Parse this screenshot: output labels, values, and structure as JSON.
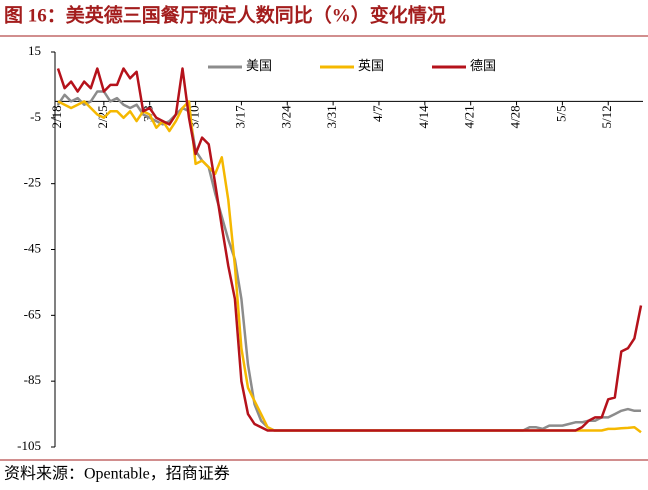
{
  "chart_data": {
    "type": "line",
    "title": "图 16：美英德三国餐厅预定人数同比（%）变化情况",
    "source": "资料来源：Opentable，招商证券",
    "categories": [
      "2/18",
      null,
      null,
      null,
      null,
      null,
      null,
      "2/25",
      null,
      null,
      null,
      null,
      null,
      null,
      "3/3",
      null,
      null,
      null,
      null,
      null,
      null,
      "3/10",
      null,
      null,
      null,
      null,
      null,
      null,
      "3/17",
      null,
      null,
      null,
      null,
      null,
      null,
      "3/24",
      null,
      null,
      null,
      null,
      null,
      null,
      "3/31",
      null,
      null,
      null,
      null,
      null,
      null,
      "4/7",
      null,
      null,
      null,
      null,
      null,
      null,
      "4/14",
      null,
      null,
      null,
      null,
      null,
      null,
      "4/21",
      null,
      null,
      null,
      null,
      null,
      null,
      "4/28",
      null,
      null,
      null,
      null,
      null,
      null,
      "5/5",
      null,
      null,
      null,
      null,
      null,
      null,
      "5/12",
      null,
      null,
      null,
      null,
      null
    ],
    "series": [
      {
        "name": "美国",
        "color": "#8c8c8c",
        "values": [
          -1,
          2,
          0,
          1,
          -1,
          0,
          3,
          3,
          0,
          1,
          -1,
          -2,
          -1,
          -4,
          -5,
          -6,
          -7,
          -6,
          -4,
          -2,
          -3,
          -15,
          -18,
          -20,
          -28,
          -35,
          -42,
          -48,
          -60,
          -80,
          -92,
          -97,
          -99,
          -100,
          -100,
          -100,
          -100,
          -100,
          -100,
          -100,
          -100,
          -100,
          -100,
          -100,
          -100,
          -100,
          -100,
          -100,
          -100,
          -100,
          -100,
          -100,
          -100,
          -100,
          -100,
          -100,
          -100,
          -100,
          -100,
          -100,
          -100,
          -100,
          -100,
          -100,
          -100,
          -100,
          -100,
          -100,
          -100,
          -100,
          -100,
          -100,
          -99,
          -99,
          -99.5,
          -98.5,
          -98.5,
          -98.5,
          -98,
          -97.5,
          -97.5,
          -97,
          -97,
          -96,
          -96,
          -95,
          -94,
          -93.5,
          -94,
          -94
        ]
      },
      {
        "name": "英国",
        "color": "#f5b800",
        "values": [
          0,
          -1,
          -2,
          -1,
          0,
          -2,
          -4,
          -5,
          -3,
          -3,
          -5,
          -3,
          -6,
          -3,
          -4,
          -8,
          -6,
          -9,
          -6,
          -2,
          0,
          -19,
          -18,
          -20,
          -22,
          -17,
          -30,
          -50,
          -75,
          -87,
          -91,
          -95,
          -99,
          -100,
          -100,
          -100,
          -100,
          -100,
          -100,
          -100,
          -100,
          -100,
          -100,
          -100,
          -100,
          -100,
          -100,
          -100,
          -100,
          -100,
          -100,
          -100,
          -100,
          -100,
          -100,
          -100,
          -100,
          -100,
          -100,
          -100,
          -100,
          -100,
          -100,
          -100,
          -100,
          -100,
          -100,
          -100,
          -100,
          -100,
          -100,
          -100,
          -100,
          -100,
          -100,
          -100,
          -100,
          -100,
          -100,
          -100,
          -100,
          -100,
          -100,
          -100,
          -99.5,
          -99.5,
          -99.3,
          -99.2,
          -99,
          -100.5
        ]
      },
      {
        "name": "德国",
        "color": "#b5121b",
        "values": [
          10,
          4,
          6,
          3,
          6,
          4,
          10,
          3,
          5,
          5,
          10,
          7,
          9,
          -3,
          -2,
          -5,
          -6,
          -7,
          -4,
          10,
          -5,
          -16,
          -11,
          -13,
          -25,
          -38,
          -50,
          -60,
          -85,
          -95,
          -98,
          -99,
          -100,
          -100,
          -100,
          -100,
          -100,
          -100,
          -100,
          -100,
          -100,
          -100,
          -100,
          -100,
          -100,
          -100,
          -100,
          -100,
          -100,
          -100,
          -100,
          -100,
          -100,
          -100,
          -100,
          -100,
          -100,
          -100,
          -100,
          -100,
          -100,
          -100,
          -100,
          -100,
          -100,
          -100,
          -100,
          -100,
          -100,
          -100,
          -100,
          -100,
          -100,
          -100,
          -100,
          -100,
          -100,
          -100,
          -100,
          -100,
          -99,
          -97,
          -96,
          -96,
          -90.5,
          -90,
          -76,
          -75,
          -72,
          -62
        ]
      }
    ],
    "ylim": [
      -105,
      15
    ],
    "yticks": [
      15,
      -5,
      -25,
      -45,
      -65,
      -85,
      -105
    ]
  }
}
